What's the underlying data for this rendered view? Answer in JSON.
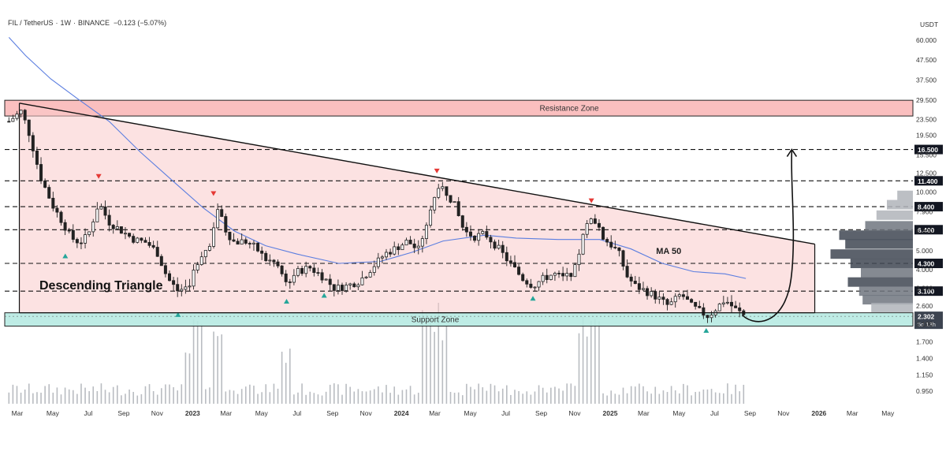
{
  "chart_data": {
    "type": "candlestick",
    "symbol": "FIL / TetherUS",
    "interval": "1W",
    "exchange": "BINANCE",
    "change_text": "−0.123 (−5.07%)",
    "header_separator": "·",
    "currency_label": "USDT",
    "y_scale": "log",
    "ylim": [
      0.82,
      80
    ],
    "price_axis": [
      "60.000",
      "47.500",
      "37.500",
      "29.500",
      "23.500",
      "19.500",
      "15.500",
      "12.500",
      "10.000",
      "7.900",
      "6.300",
      "5.000",
      "4.000",
      "3.200",
      "2.600",
      "2.100",
      "1.700",
      "1.400",
      "1.150",
      "0.950"
    ],
    "price_axis_values": [
      60,
      47.5,
      37.5,
      29.5,
      23.5,
      19.5,
      15.5,
      12.5,
      10,
      7.9,
      6.3,
      5,
      4,
      3.2,
      2.6,
      2.1,
      1.7,
      1.4,
      1.15,
      0.95
    ],
    "time_axis": [
      {
        "label": "Mar",
        "t": 2022.16,
        "bold": false
      },
      {
        "label": "May",
        "t": 2022.33,
        "bold": false
      },
      {
        "label": "Jul",
        "t": 2022.5,
        "bold": false
      },
      {
        "label": "Sep",
        "t": 2022.67,
        "bold": false
      },
      {
        "label": "Nov",
        "t": 2022.83,
        "bold": false
      },
      {
        "label": "2023",
        "t": 2023.0,
        "bold": true
      },
      {
        "label": "Mar",
        "t": 2023.16,
        "bold": false
      },
      {
        "label": "May",
        "t": 2023.33,
        "bold": false
      },
      {
        "label": "Jul",
        "t": 2023.5,
        "bold": false
      },
      {
        "label": "Sep",
        "t": 2023.67,
        "bold": false
      },
      {
        "label": "Nov",
        "t": 2023.83,
        "bold": false
      },
      {
        "label": "2024",
        "t": 2024.0,
        "bold": true
      },
      {
        "label": "Mar",
        "t": 2024.16,
        "bold": false
      },
      {
        "label": "May",
        "t": 2024.33,
        "bold": false
      },
      {
        "label": "Jul",
        "t": 2024.5,
        "bold": false
      },
      {
        "label": "Sep",
        "t": 2024.67,
        "bold": false
      },
      {
        "label": "Nov",
        "t": 2024.83,
        "bold": false
      },
      {
        "label": "2025",
        "t": 2025.0,
        "bold": true
      },
      {
        "label": "Mar",
        "t": 2025.16,
        "bold": false
      },
      {
        "label": "May",
        "t": 2025.33,
        "bold": false
      },
      {
        "label": "Jul",
        "t": 2025.5,
        "bold": false
      },
      {
        "label": "Sep",
        "t": 2025.67,
        "bold": false
      },
      {
        "label": "Nov",
        "t": 2025.83,
        "bold": false
      },
      {
        "label": "2026",
        "t": 2026.0,
        "bold": true
      },
      {
        "label": "Mar",
        "t": 2026.16,
        "bold": false
      },
      {
        "label": "May",
        "t": 2026.33,
        "bold": false
      }
    ],
    "xlim": [
      2022.1,
      2026.45
    ],
    "close_path": [
      {
        "t": 2022.12,
        "v": 23.0
      },
      {
        "t": 2022.18,
        "v": 26.0
      },
      {
        "t": 2022.22,
        "v": 19.5
      },
      {
        "t": 2022.27,
        "v": 12.0
      },
      {
        "t": 2022.33,
        "v": 8.5
      },
      {
        "t": 2022.37,
        "v": 7.2
      },
      {
        "t": 2022.42,
        "v": 5.8
      },
      {
        "t": 2022.46,
        "v": 5.5
      },
      {
        "t": 2022.5,
        "v": 6.0
      },
      {
        "t": 2022.55,
        "v": 8.8
      },
      {
        "t": 2022.6,
        "v": 7.0
      },
      {
        "t": 2022.67,
        "v": 6.2
      },
      {
        "t": 2022.72,
        "v": 5.7
      },
      {
        "t": 2022.78,
        "v": 5.5
      },
      {
        "t": 2022.83,
        "v": 4.9
      },
      {
        "t": 2022.88,
        "v": 3.6
      },
      {
        "t": 2022.93,
        "v": 3.1
      },
      {
        "t": 2022.98,
        "v": 3.3
      },
      {
        "t": 2023.03,
        "v": 4.6
      },
      {
        "t": 2023.08,
        "v": 5.4
      },
      {
        "t": 2023.12,
        "v": 8.2
      },
      {
        "t": 2023.16,
        "v": 6.3
      },
      {
        "t": 2023.2,
        "v": 5.5
      },
      {
        "t": 2023.25,
        "v": 5.6
      },
      {
        "t": 2023.3,
        "v": 5.2
      },
      {
        "t": 2023.35,
        "v": 4.5
      },
      {
        "t": 2023.4,
        "v": 4.3
      },
      {
        "t": 2023.45,
        "v": 3.4
      },
      {
        "t": 2023.5,
        "v": 3.9
      },
      {
        "t": 2023.56,
        "v": 4.1
      },
      {
        "t": 2023.62,
        "v": 3.7
      },
      {
        "t": 2023.68,
        "v": 3.2
      },
      {
        "t": 2023.74,
        "v": 3.3
      },
      {
        "t": 2023.8,
        "v": 3.5
      },
      {
        "t": 2023.86,
        "v": 4.1
      },
      {
        "t": 2023.92,
        "v": 4.8
      },
      {
        "t": 2023.98,
        "v": 5.2
      },
      {
        "t": 2024.03,
        "v": 5.6
      },
      {
        "t": 2024.08,
        "v": 5.0
      },
      {
        "t": 2024.12,
        "v": 6.8
      },
      {
        "t": 2024.16,
        "v": 9.6
      },
      {
        "t": 2024.2,
        "v": 10.5
      },
      {
        "t": 2024.25,
        "v": 8.8
      },
      {
        "t": 2024.3,
        "v": 6.3
      },
      {
        "t": 2024.35,
        "v": 5.9
      },
      {
        "t": 2024.4,
        "v": 6.1
      },
      {
        "t": 2024.46,
        "v": 5.2
      },
      {
        "t": 2024.52,
        "v": 4.3
      },
      {
        "t": 2024.58,
        "v": 3.6
      },
      {
        "t": 2024.63,
        "v": 3.3
      },
      {
        "t": 2024.68,
        "v": 3.6
      },
      {
        "t": 2024.73,
        "v": 3.8
      },
      {
        "t": 2024.78,
        "v": 3.6
      },
      {
        "t": 2024.83,
        "v": 4.0
      },
      {
        "t": 2024.88,
        "v": 6.5
      },
      {
        "t": 2024.92,
        "v": 7.4
      },
      {
        "t": 2024.96,
        "v": 5.9
      },
      {
        "t": 2025.0,
        "v": 5.4
      },
      {
        "t": 2025.04,
        "v": 4.9
      },
      {
        "t": 2025.08,
        "v": 3.7
      },
      {
        "t": 2025.12,
        "v": 3.3
      },
      {
        "t": 2025.17,
        "v": 3.1
      },
      {
        "t": 2025.22,
        "v": 2.9
      },
      {
        "t": 2025.28,
        "v": 2.6
      },
      {
        "t": 2025.34,
        "v": 3.0
      },
      {
        "t": 2025.39,
        "v": 2.6
      },
      {
        "t": 2025.44,
        "v": 2.4
      },
      {
        "t": 2025.47,
        "v": 2.3
      },
      {
        "t": 2025.51,
        "v": 2.55
      },
      {
        "t": 2025.55,
        "v": 2.8
      },
      {
        "t": 2025.6,
        "v": 2.5
      },
      {
        "t": 2025.65,
        "v": 2.3
      }
    ],
    "volume_spikes": [
      {
        "t": 2022.98,
        "v": 0.6
      },
      {
        "t": 2023.03,
        "v": 0.9
      },
      {
        "t": 2023.12,
        "v": 0.8
      },
      {
        "t": 2023.45,
        "v": 0.55
      },
      {
        "t": 2024.12,
        "v": 0.95
      },
      {
        "t": 2024.16,
        "v": 1.0
      },
      {
        "t": 2024.2,
        "v": 0.85
      },
      {
        "t": 2024.88,
        "v": 0.9
      },
      {
        "t": 2024.92,
        "v": 1.0
      }
    ],
    "ma50_path": [
      {
        "t": 2022.12,
        "v": 62
      },
      {
        "t": 2022.2,
        "v": 50
      },
      {
        "t": 2022.32,
        "v": 38
      },
      {
        "t": 2022.45,
        "v": 30
      },
      {
        "t": 2022.6,
        "v": 23
      },
      {
        "t": 2022.75,
        "v": 16
      },
      {
        "t": 2022.9,
        "v": 11.5
      },
      {
        "t": 2023.05,
        "v": 8.3
      },
      {
        "t": 2023.2,
        "v": 6.3
      },
      {
        "t": 2023.35,
        "v": 5.3
      },
      {
        "t": 2023.5,
        "v": 4.8
      },
      {
        "t": 2023.7,
        "v": 4.3
      },
      {
        "t": 2023.9,
        "v": 4.4
      },
      {
        "t": 2024.05,
        "v": 4.9
      },
      {
        "t": 2024.2,
        "v": 5.6
      },
      {
        "t": 2024.4,
        "v": 6.0
      },
      {
        "t": 2024.55,
        "v": 5.8
      },
      {
        "t": 2024.75,
        "v": 5.7
      },
      {
        "t": 2024.95,
        "v": 5.7
      },
      {
        "t": 2025.1,
        "v": 5.1
      },
      {
        "t": 2025.25,
        "v": 4.3
      },
      {
        "t": 2025.4,
        "v": 3.9
      },
      {
        "t": 2025.55,
        "v": 3.8
      },
      {
        "t": 2025.65,
        "v": 3.6
      }
    ],
    "resistance_zone": {
      "label": "Resistance Zone",
      "low": 24.5,
      "high": 29.5
    },
    "support_zone": {
      "label": "Support Zone",
      "low": 2.05,
      "high": 2.4
    },
    "triangle": {
      "label": "Descending Triangle",
      "start_t": 2022.17,
      "start_v": 28.5,
      "end_t": 2025.98,
      "end_v": 5.4,
      "base_v": 2.4
    },
    "horizontal_levels": [
      {
        "value": 16.5,
        "label": "16.500",
        "flag": true
      },
      {
        "value": 11.4,
        "label": "11.400",
        "flag": true
      },
      {
        "value": 8.4,
        "label": "8.400",
        "flag": true
      },
      {
        "value": 6.4,
        "label": "6.400",
        "flag": true
      },
      {
        "value": 4.3,
        "label": "4.300",
        "flag": true
      },
      {
        "value": 3.1,
        "label": "3.100",
        "flag": true
      }
    ],
    "current_price": {
      "value": 2.302,
      "label": "2.302",
      "countdown": "5d 13h"
    },
    "ma_label": "MA 50",
    "ma_label_anchor": {
      "t": 2025.22,
      "v": 5.0
    },
    "projection_arrow": {
      "from_t": 2025.67,
      "from_v": 2.25,
      "to_t": 2025.87,
      "to_v": 16.5
    },
    "markers_down": [
      {
        "t": 2022.55,
        "v": 12.0
      },
      {
        "t": 2023.1,
        "v": 9.8
      },
      {
        "t": 2024.17,
        "v": 12.8
      },
      {
        "t": 2024.91,
        "v": 9.0
      }
    ],
    "markers_up": [
      {
        "t": 2022.39,
        "v": 4.7
      },
      {
        "t": 2022.93,
        "v": 2.35
      },
      {
        "t": 2023.45,
        "v": 2.75
      },
      {
        "t": 2023.63,
        "v": 2.95
      },
      {
        "t": 2024.63,
        "v": 2.85
      },
      {
        "t": 2025.46,
        "v": 1.95
      }
    ],
    "volume_profile": [
      {
        "value": 9.6,
        "size": 0.18
      },
      {
        "value": 8.6,
        "size": 0.3
      },
      {
        "value": 7.6,
        "size": 0.42
      },
      {
        "value": 6.7,
        "size": 0.55
      },
      {
        "value": 6.0,
        "size": 0.85
      },
      {
        "value": 5.4,
        "size": 0.78
      },
      {
        "value": 4.8,
        "size": 0.95
      },
      {
        "value": 4.3,
        "size": 0.72
      },
      {
        "value": 3.85,
        "size": 0.6
      },
      {
        "value": 3.45,
        "size": 0.75
      },
      {
        "value": 3.1,
        "size": 0.62
      },
      {
        "value": 2.8,
        "size": 0.58
      },
      {
        "value": 2.55,
        "size": 0.48
      }
    ]
  }
}
